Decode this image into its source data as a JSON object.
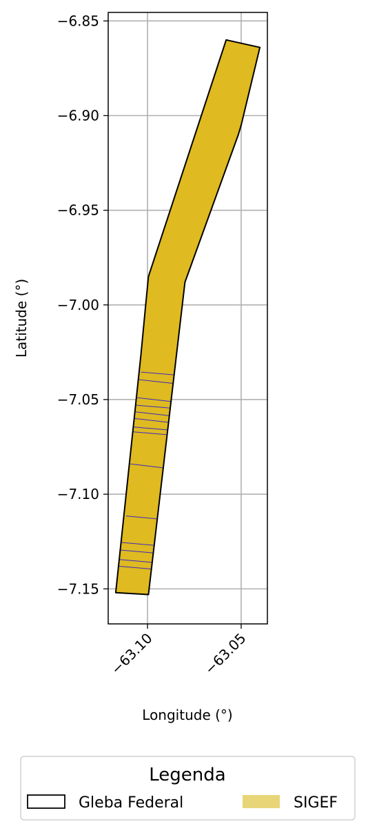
{
  "chart_data": {
    "type": "map",
    "xlabel": "Longitude (°)",
    "ylabel": "Latitude (°)",
    "xlim": [
      -63.121,
      -63.036
    ],
    "ylim": [
      -7.1685,
      -6.8455
    ],
    "xticks": [
      -63.1,
      -63.05
    ],
    "xtick_labels": [
      "−63.10",
      "−63.05"
    ],
    "yticks": [
      -6.85,
      -6.9,
      -6.95,
      -7.0,
      -7.05,
      -7.1,
      -7.15
    ],
    "ytick_labels": [
      "−6.85",
      "−6.90",
      "−6.95",
      "−7.00",
      "−7.05",
      "−7.10",
      "−7.15"
    ],
    "grid": true,
    "gleba_federal": {
      "name": "Gleba Federal",
      "polygon": [
        [
          -63.058,
          -6.86
        ],
        [
          -63.04,
          -6.864
        ],
        [
          -63.05,
          -6.905
        ],
        [
          -63.0515,
          -6.91
        ],
        [
          -63.08,
          -6.988
        ],
        [
          -63.0995,
          -7.153
        ],
        [
          -63.117,
          -7.152
        ],
        [
          -63.1035,
          -7.026
        ],
        [
          -63.101,
          -7.0
        ],
        [
          -63.0995,
          -6.985
        ]
      ]
    },
    "sigef": {
      "name": "SIGEF",
      "color": "#dfba20",
      "legend_color": "#e8d577",
      "divider_color": "#3a2ac0",
      "divider_lines": [
        [
          [
            -63.1035,
            -7.0355
          ],
          [
            -63.0855,
            -7.037
          ]
        ],
        [
          [
            -63.1045,
            -7.0395
          ],
          [
            -63.086,
            -7.0415
          ]
        ],
        [
          [
            -63.1055,
            -7.049
          ],
          [
            -63.0875,
            -7.051
          ]
        ],
        [
          [
            -63.106,
            -7.053
          ],
          [
            -63.088,
            -7.0545
          ]
        ],
        [
          [
            -63.1065,
            -7.0565
          ],
          [
            -63.0885,
            -7.0585
          ]
        ],
        [
          [
            -63.107,
            -7.06
          ],
          [
            -63.089,
            -7.062
          ]
        ],
        [
          [
            -63.1075,
            -7.0645
          ],
          [
            -63.0895,
            -7.066
          ]
        ],
        [
          [
            -63.108,
            -7.067
          ],
          [
            -63.09,
            -7.0685
          ]
        ],
        [
          [
            -63.109,
            -7.084
          ],
          [
            -63.092,
            -7.086
          ]
        ],
        [
          [
            -63.1115,
            -7.1115
          ],
          [
            -63.095,
            -7.113
          ]
        ],
        [
          [
            -63.114,
            -7.1255
          ],
          [
            -63.0965,
            -7.127
          ]
        ],
        [
          [
            -63.1145,
            -7.1295
          ],
          [
            -63.097,
            -7.131
          ]
        ],
        [
          [
            -63.115,
            -7.1345
          ],
          [
            -63.0975,
            -7.136
          ]
        ],
        [
          [
            -63.1155,
            -7.138
          ],
          [
            -63.098,
            -7.1395
          ]
        ]
      ]
    }
  },
  "legend": {
    "title": "Legenda",
    "items": [
      {
        "label": "Gleba Federal",
        "style": "outline",
        "color": "#000000"
      },
      {
        "label": "SIGEF",
        "style": "fill",
        "color": "#e8d577"
      }
    ]
  }
}
